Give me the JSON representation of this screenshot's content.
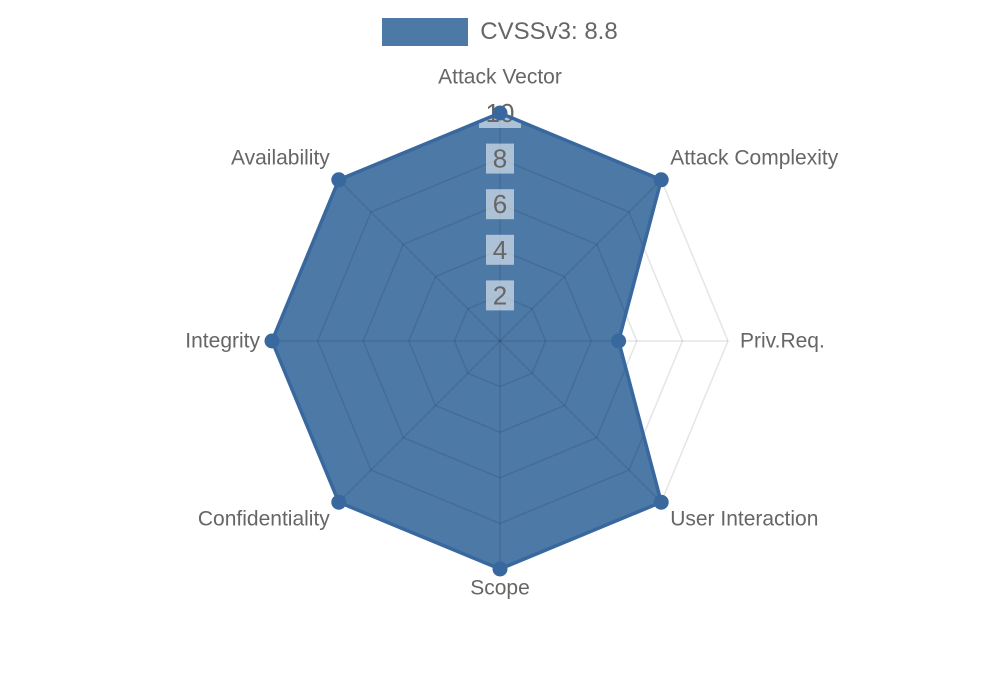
{
  "legend": {
    "label": "CVSSv3: 8.8",
    "swatch_color": "#4d79a7",
    "position": "top"
  },
  "chart_data": {
    "type": "radar",
    "categories": [
      "Attack Vector",
      "Attack Complexity",
      "Priv.Req.",
      "User Interaction",
      "Scope",
      "Confidentiality",
      "Integrity",
      "Availability"
    ],
    "series": [
      {
        "name": "CVSSv3: 8.8",
        "values": [
          10,
          10,
          5.2,
          10,
          10,
          10,
          10,
          10
        ]
      }
    ],
    "rmin": 0,
    "rmax": 10,
    "tick_values": [
      "2",
      "4",
      "6",
      "8",
      "10"
    ],
    "grid": "on",
    "grid_shape": "polygon",
    "legend_position": "top",
    "colors": {
      "fill": "#4d79a7",
      "line": "#38689e",
      "point": "#38689e",
      "grid_line": "rgba(0,0,0,0.10)",
      "tick_text": "#666666",
      "tick_backdrop": "rgba(255,255,255,0.55)",
      "label_text": "#666666",
      "background": "#ffffff"
    }
  }
}
